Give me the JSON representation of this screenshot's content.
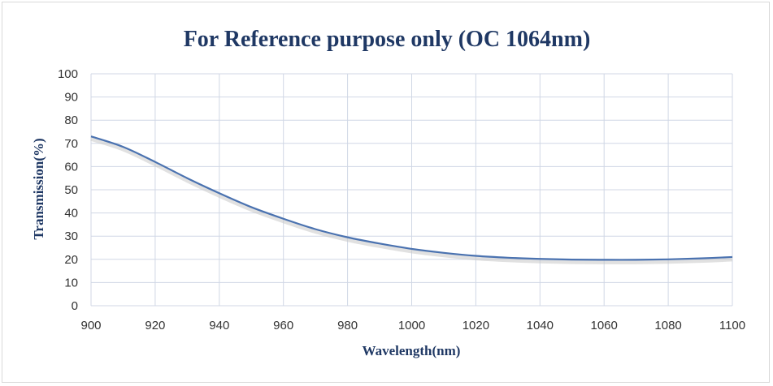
{
  "chart_data": {
    "type": "line",
    "title": "For Reference purpose only (OC 1064nm)",
    "xlabel": "Wavelength(nm)",
    "ylabel": "Transmission(%)",
    "xlim": [
      900,
      1100
    ],
    "ylim": [
      0,
      100
    ],
    "xticks": [
      900,
      920,
      940,
      960,
      980,
      1000,
      1020,
      1040,
      1060,
      1080,
      1100
    ],
    "yticks": [
      0,
      10,
      20,
      30,
      40,
      50,
      60,
      70,
      80,
      90,
      100
    ],
    "grid": true,
    "legend": "none",
    "series": [
      {
        "color": "#4a72b0",
        "x": [
          900,
          910,
          920,
          930,
          940,
          950,
          960,
          970,
          980,
          990,
          1000,
          1010,
          1020,
          1030,
          1040,
          1050,
          1060,
          1070,
          1080,
          1090,
          1100
        ],
        "y": [
          73,
          68.5,
          62,
          55,
          48.5,
          42.5,
          37.5,
          33,
          29.5,
          26.8,
          24.5,
          22.8,
          21.5,
          20.7,
          20.2,
          19.9,
          19.8,
          19.8,
          20,
          20.4,
          21
        ]
      }
    ]
  }
}
